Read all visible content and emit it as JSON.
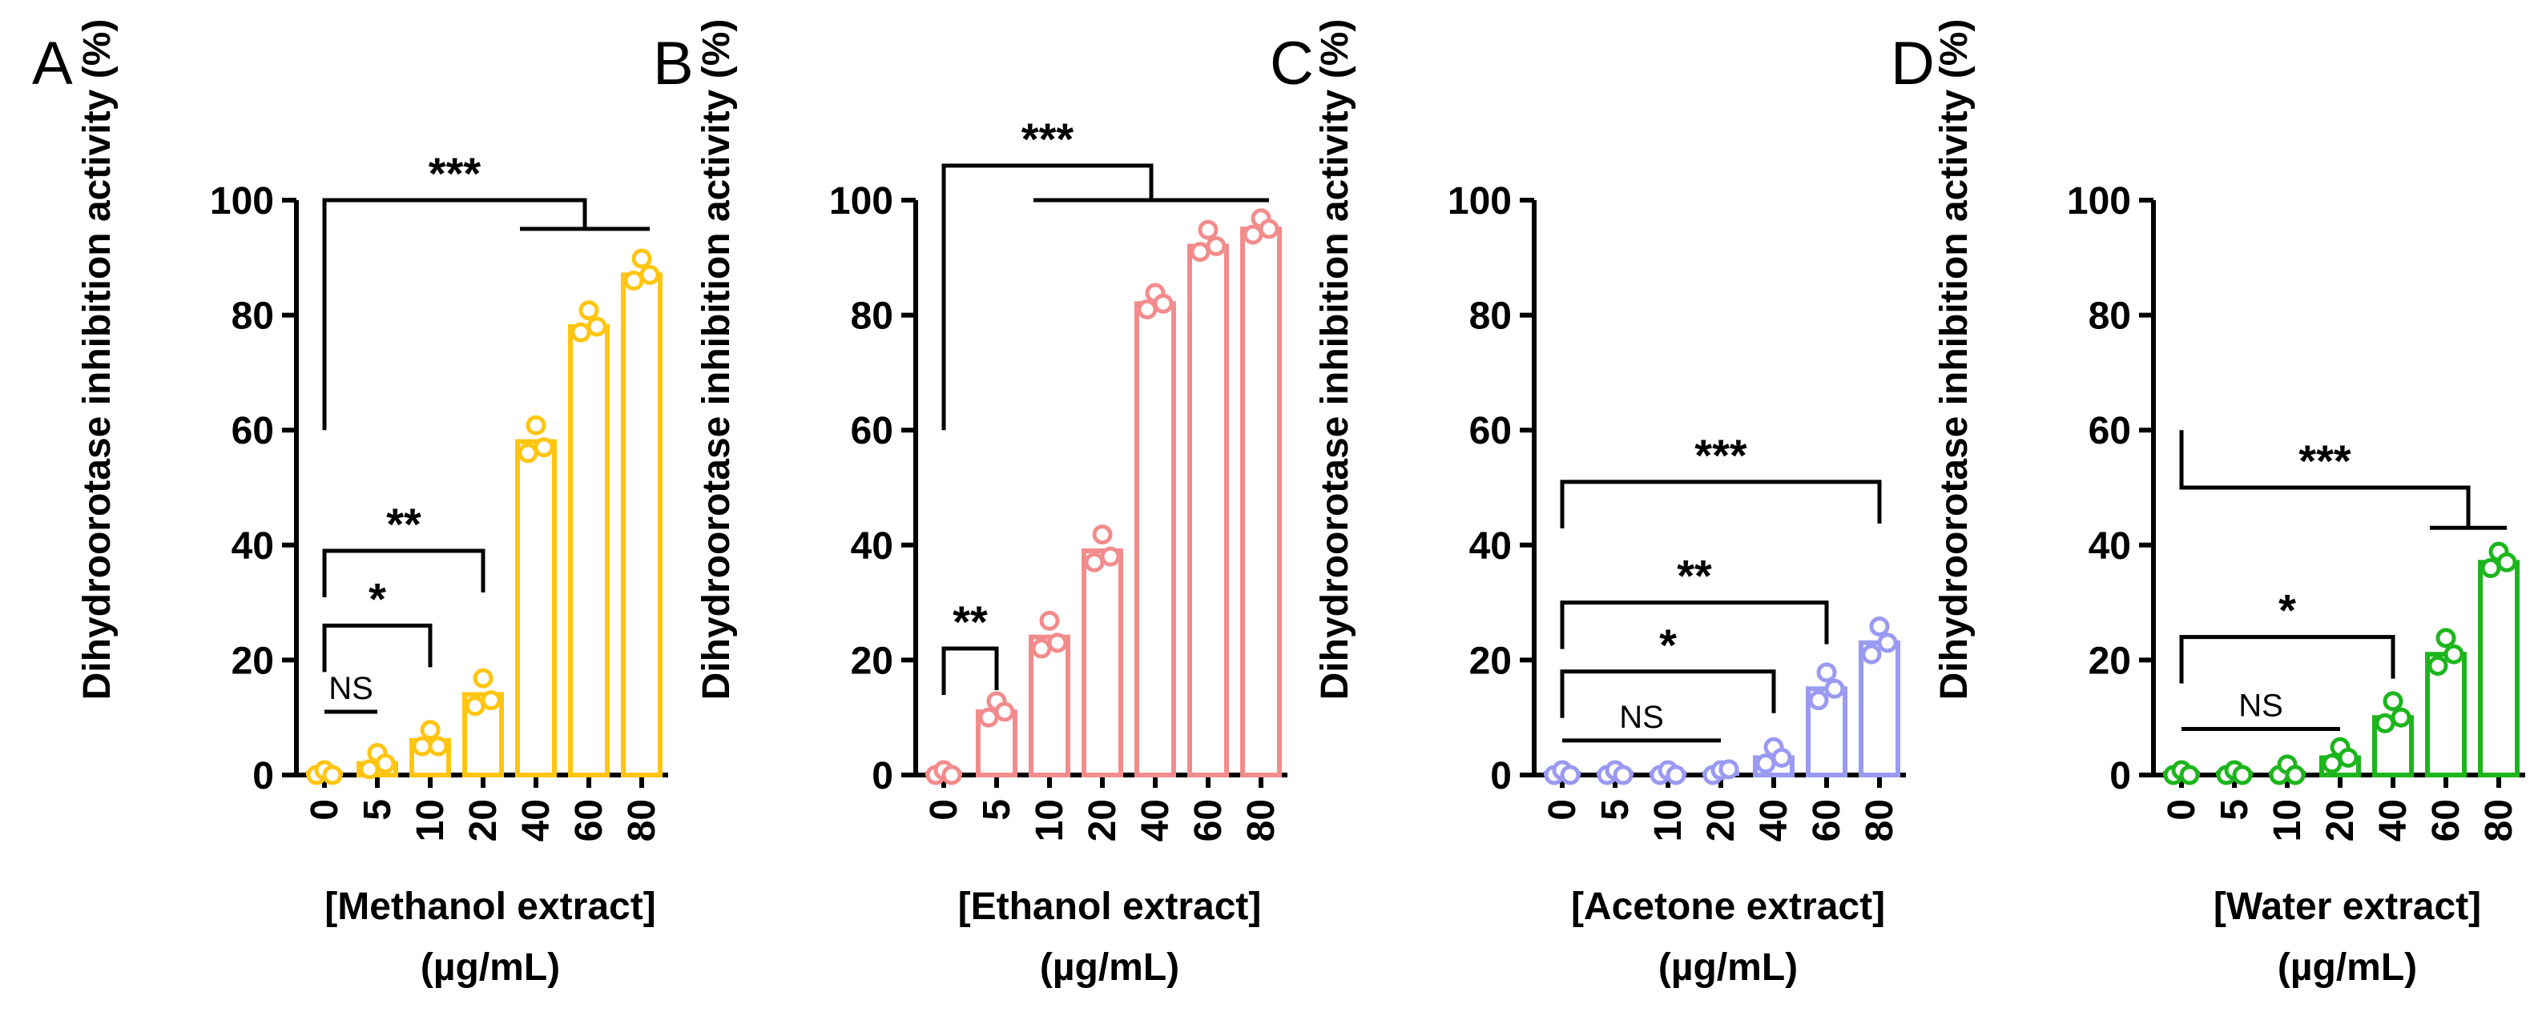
{
  "chart_data": [
    {
      "type": "bar",
      "panel": "A",
      "ylabel": "Dihydroorotase inhibition activity (%)",
      "xlabel": "[Methanol extract]",
      "xunit": "(µg/mL)",
      "categories": [
        "0",
        "5",
        "10",
        "20",
        "40",
        "60",
        "80"
      ],
      "values": [
        0,
        2,
        6,
        14,
        58,
        78,
        87
      ],
      "points": [
        [
          0,
          0,
          0
        ],
        [
          1,
          3,
          2
        ],
        [
          5,
          7,
          5
        ],
        [
          12,
          16,
          13
        ],
        [
          56,
          60,
          57
        ],
        [
          77,
          80,
          78
        ],
        [
          86,
          89,
          87
        ]
      ],
      "yticks": [
        0,
        20,
        40,
        60,
        80,
        100
      ],
      "ylim": [
        0,
        100
      ],
      "color": "#FFC510",
      "brackets": [
        {
          "from": "0",
          "to": "5",
          "y": 11,
          "label": "NS",
          "style": "single",
          "drop_left": false
        },
        {
          "from": "0",
          "to": "10",
          "y": 26,
          "label": "*",
          "style": "single",
          "drop_left": true
        },
        {
          "from": "0",
          "to": "20",
          "y": 39,
          "label": "**",
          "style": "single",
          "drop_left": true
        },
        {
          "from": "0",
          "to_range": [
            "40",
            "80"
          ],
          "y": 100,
          "y_range": 95,
          "label": "***",
          "style": "group"
        }
      ]
    },
    {
      "type": "bar",
      "panel": "B",
      "ylabel": "Dihydroorotase inhibition activity (%)",
      "xlabel": "[Ethanol extract]",
      "xunit": "(µg/mL)",
      "categories": [
        "0",
        "5",
        "10",
        "20",
        "40",
        "60",
        "80"
      ],
      "values": [
        0,
        11,
        24,
        39,
        82,
        92,
        95
      ],
      "points": [
        [
          0,
          0,
          0
        ],
        [
          10,
          12,
          11
        ],
        [
          22,
          26,
          23
        ],
        [
          37,
          41,
          38
        ],
        [
          81,
          83,
          82
        ],
        [
          91,
          94,
          92
        ],
        [
          94,
          96,
          95
        ]
      ],
      "yticks": [
        0,
        20,
        40,
        60,
        80,
        100
      ],
      "ylim": [
        0,
        100
      ],
      "color": "#F28C8C",
      "brackets": [
        {
          "from": "0",
          "to": "5",
          "y": 22,
          "label": "**",
          "style": "single",
          "drop_left": true
        },
        {
          "from": "0",
          "to_range": [
            "10",
            "80"
          ],
          "y": 106,
          "y_range": 100,
          "label": "***",
          "style": "group"
        }
      ]
    },
    {
      "type": "bar",
      "panel": "C",
      "ylabel": "Dihydroorotase inhibition activity (%)",
      "xlabel": "[Acetone extract]",
      "xunit": "(µg/mL)",
      "categories": [
        "0",
        "5",
        "10",
        "20",
        "40",
        "60",
        "80"
      ],
      "values": [
        0,
        0,
        0,
        0,
        3,
        15,
        23
      ],
      "points": [
        [
          0,
          0,
          0
        ],
        [
          0,
          0,
          0
        ],
        [
          0,
          0,
          0
        ],
        [
          0,
          0,
          1
        ],
        [
          2,
          4,
          3
        ],
        [
          13,
          17,
          15
        ],
        [
          21,
          25,
          23
        ]
      ],
      "yticks": [
        0,
        20,
        40,
        60,
        80,
        100
      ],
      "ylim": [
        0,
        100
      ],
      "color": "#9A9AF2",
      "brackets": [
        {
          "from": "0",
          "to": "20",
          "y": 6,
          "label": "NS",
          "style": "single",
          "drop_left": false
        },
        {
          "from": "0",
          "to": "40",
          "y": 18,
          "label": "*",
          "style": "single",
          "drop_left": true
        },
        {
          "from": "0",
          "to": "60",
          "y": 30,
          "label": "**",
          "style": "single",
          "drop_left": true
        },
        {
          "from": "0",
          "to": "80",
          "y": 51,
          "label": "***",
          "style": "single",
          "drop_left": true
        }
      ]
    },
    {
      "type": "bar",
      "panel": "D",
      "ylabel": "Dihydroorotase inhibition activity (%)",
      "xlabel": "[Water extract]",
      "xunit": "(µg/mL)",
      "categories": [
        "0",
        "5",
        "10",
        "20",
        "40",
        "60",
        "80"
      ],
      "values": [
        0,
        0,
        0,
        3,
        10,
        21,
        37
      ],
      "points": [
        [
          0,
          0,
          0
        ],
        [
          0,
          0,
          0
        ],
        [
          0,
          1,
          0
        ],
        [
          2,
          4,
          3
        ],
        [
          9,
          12,
          10
        ],
        [
          19,
          23,
          21
        ],
        [
          36,
          38,
          37
        ]
      ],
      "yticks": [
        0,
        20,
        40,
        60,
        80,
        100
      ],
      "ylim": [
        0,
        100
      ],
      "color": "#1DB51D",
      "brackets": [
        {
          "from": "0",
          "to": "20",
          "y": 8,
          "label": "NS",
          "style": "single",
          "drop_left": false
        },
        {
          "from": "0",
          "to": "40",
          "y": 24,
          "label": "*",
          "style": "single",
          "drop_left": true
        },
        {
          "from": "0",
          "to_range": [
            "60",
            "80"
          ],
          "y": 50,
          "y_range": 43,
          "label": "***",
          "style": "group"
        }
      ]
    }
  ]
}
